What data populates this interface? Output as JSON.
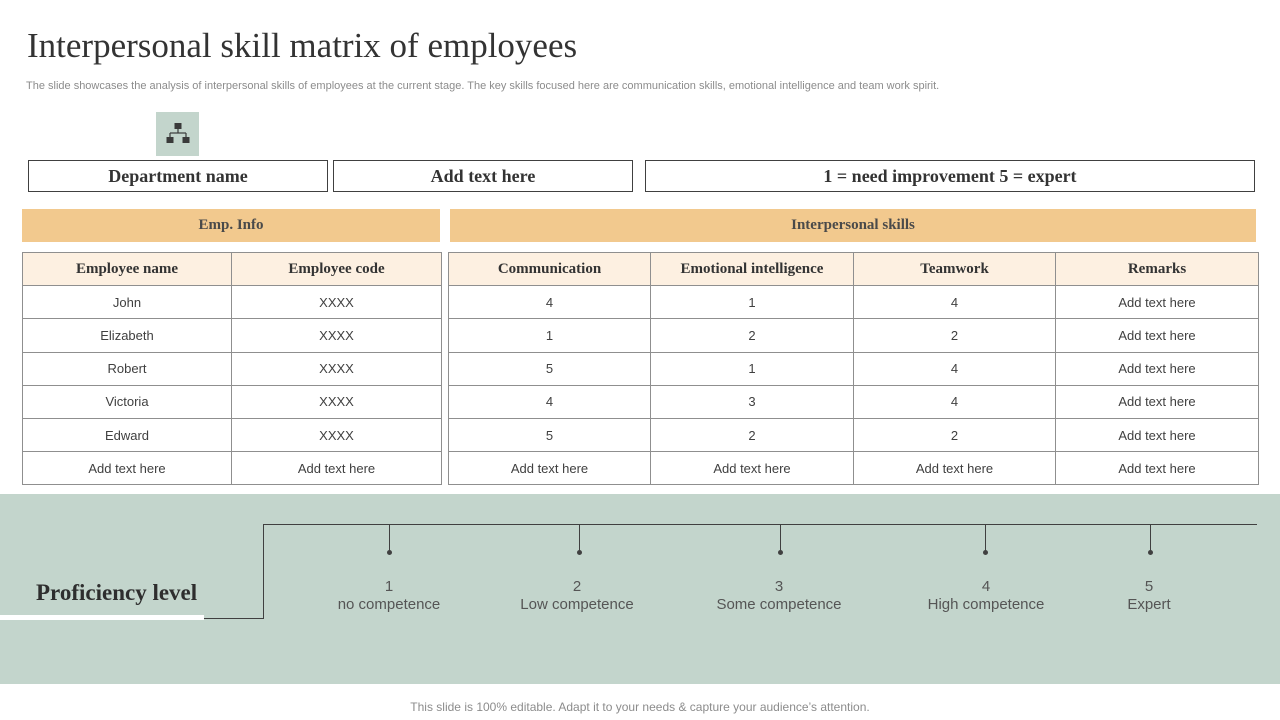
{
  "title": "Interpersonal skill matrix of employees",
  "subtitle": "The slide showcases the analysis of interpersonal skills of employees at the current stage. The key skills focused here are communication skills, emotional intelligence and team work spirit.",
  "icon": "org-chart-icon",
  "info_boxes": {
    "department": "Department name",
    "add_text": "Add text here",
    "scale": "1 = need improvement  5 = expert"
  },
  "groups": {
    "emp_info": "Emp. Info",
    "interpersonal": "Interpersonal skills"
  },
  "emp_table": {
    "headers": [
      "Employee name",
      "Employee code"
    ],
    "rows": [
      [
        "John",
        "XXXX"
      ],
      [
        "Elizabeth",
        "XXXX"
      ],
      [
        "Robert",
        "XXXX"
      ],
      [
        "Victoria",
        "XXXX"
      ],
      [
        "Edward",
        "XXXX"
      ],
      [
        "Add text here",
        "Add text here"
      ]
    ]
  },
  "skills_table": {
    "headers": [
      "Communication",
      "Emotional intelligence",
      "Teamwork",
      "Remarks"
    ],
    "rows": [
      [
        "4",
        "1",
        "4",
        "Add text here"
      ],
      [
        "1",
        "2",
        "2",
        "Add text here"
      ],
      [
        "5",
        "1",
        "4",
        "Add text here"
      ],
      [
        "4",
        "3",
        "4",
        "Add text here"
      ],
      [
        "5",
        "2",
        "2",
        "Add text here"
      ],
      [
        "Add text here",
        "Add text here",
        "Add text here",
        "Add text here"
      ]
    ]
  },
  "proficiency": {
    "title": "Proficiency level",
    "levels": [
      {
        "num": "1",
        "label": "no competence"
      },
      {
        "num": "2",
        "label": "Low competence"
      },
      {
        "num": "3",
        "label": "Some competence"
      },
      {
        "num": "4",
        "label": "High competence"
      },
      {
        "num": "5",
        "label": "Expert"
      }
    ]
  },
  "footer": "This slide is 100% editable. Adapt it to your needs & capture your audience’s attention.",
  "colors": {
    "accent_orange": "#f2c98e",
    "header_cream": "#fdf0e1",
    "band_green": "#c3d5cc"
  }
}
